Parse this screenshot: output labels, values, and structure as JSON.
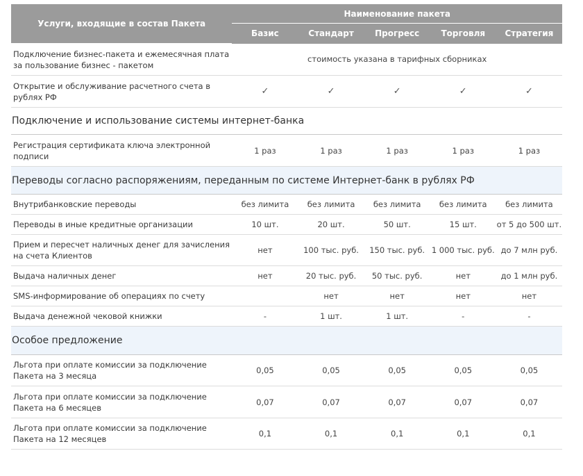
{
  "header": {
    "services_column": "Услуги, входящие в состав Пакета",
    "package_group": "Наименование пакета",
    "packages": [
      "Базис",
      "Стандарт",
      "Прогресс",
      "Торговля",
      "Стратегия"
    ]
  },
  "row_connection": {
    "label": "Подключение бизнес-пакета и ежемесячная плата за пользование бизнес - пакетом",
    "note": "стоимость  указана в тарифных сборниках"
  },
  "row_account": {
    "label": "Открытие  и обслуживание  расчетного счета в рублях РФ",
    "values": [
      "✓",
      "✓",
      "✓",
      "✓",
      "✓"
    ]
  },
  "section_internet": {
    "title": "Подключение и использование системы интернет-банка",
    "rows": [
      {
        "label": "Регистрация сертификата ключа электронной подписи",
        "values": [
          "1 раз",
          "1 раз",
          "1 раз",
          "1 раз",
          "1 раз"
        ]
      }
    ]
  },
  "section_transfers": {
    "title": "Переводы согласно распоряжениям, переданным по системе Интернет-банк в рублях РФ",
    "rows": [
      {
        "label": "Внутрибанковские переводы",
        "values": [
          "без лимита",
          "без лимита",
          "без лимита",
          "без лимита",
          "без лимита"
        ]
      },
      {
        "label": "Переводы в иные кредитные организации",
        "values": [
          "10 шт.",
          "20 шт.",
          "50 шт.",
          "15 шт.",
          "от 5 до 500 шт."
        ]
      },
      {
        "label": "Прием и пересчет наличных денег для зачисления на счета Клиентов",
        "values": [
          "нет",
          "100 тыс. руб.",
          "150 тыс. руб.",
          "1 000 тыс. руб.",
          "до 7 млн руб."
        ]
      },
      {
        "label": "Выдача наличных денег",
        "values": [
          "нет",
          "20 тыс. руб.",
          "50 тыс. руб.",
          "нет",
          "до 1 млн руб."
        ]
      },
      {
        "label": "SMS-информирование об операциях по счету",
        "values": [
          "",
          "нет",
          "нет",
          "нет",
          "нет"
        ]
      },
      {
        "label": "Выдача денежной чековой книжки",
        "values": [
          "-",
          "1 шт.",
          "1 шт.",
          "-",
          "-"
        ]
      }
    ]
  },
  "section_special": {
    "title": "Особое предложение",
    "rows": [
      {
        "label": "Льгота при оплате комиссии за подключение Пакета на 3 месяца",
        "values": [
          "0,05",
          "0,05",
          "0,05",
          "0,05",
          "0,05"
        ]
      },
      {
        "label": "Льгота при оплате комиссии за подключение Пакета на 6 месяцев",
        "values": [
          "0,07",
          "0,07",
          "0,07",
          "0,07",
          "0,07"
        ]
      },
      {
        "label": "Льгота при оплате комиссии за подключение Пакета на 12 месяцев",
        "values": [
          "0,1",
          "0,1",
          "0,1",
          "0,1",
          "0,1"
        ]
      }
    ]
  }
}
